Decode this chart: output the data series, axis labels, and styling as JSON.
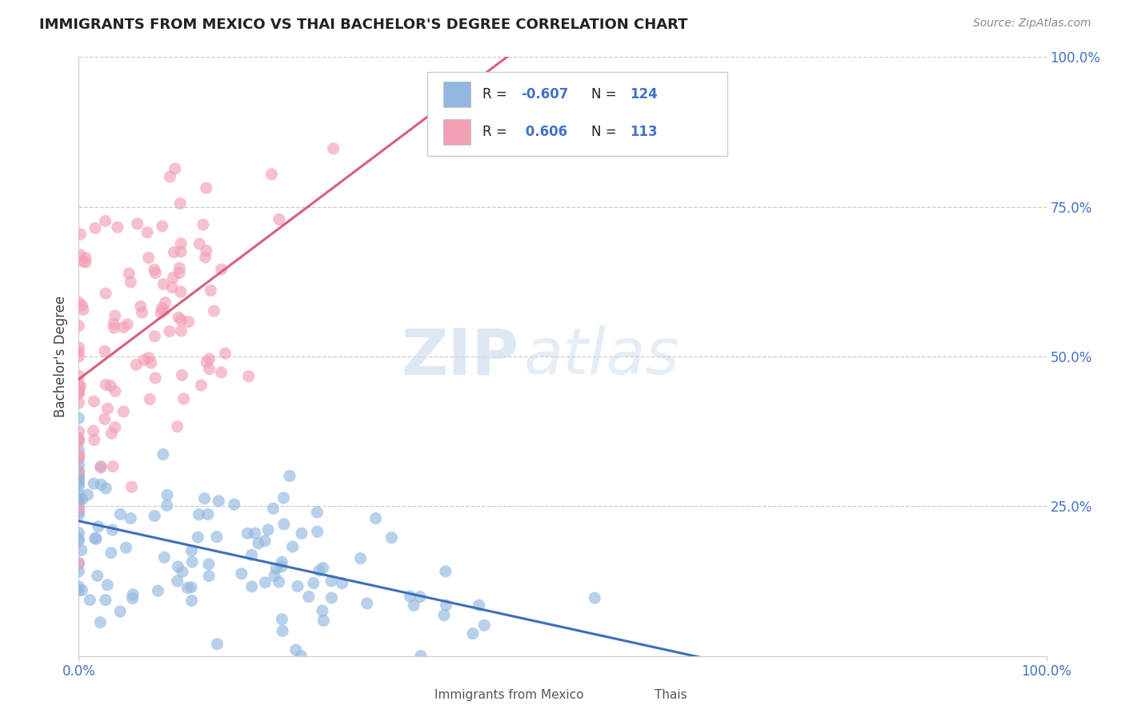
{
  "title": "IMMIGRANTS FROM MEXICO VS THAI BACHELOR'S DEGREE CORRELATION CHART",
  "source": "Source: ZipAtlas.com",
  "ylabel": "Bachelor's Degree",
  "color_blue": "#92b8e0",
  "color_pink": "#f2a0b5",
  "color_blue_line": "#3c6fba",
  "color_pink_line": "#d95f7a",
  "color_blue_text": "#4472c4",
  "watermark_zip": "ZIP",
  "watermark_atlas": "atlas",
  "legend_r1": "-0.607",
  "legend_n1": "124",
  "legend_r2": "0.606",
  "legend_n2": "113"
}
